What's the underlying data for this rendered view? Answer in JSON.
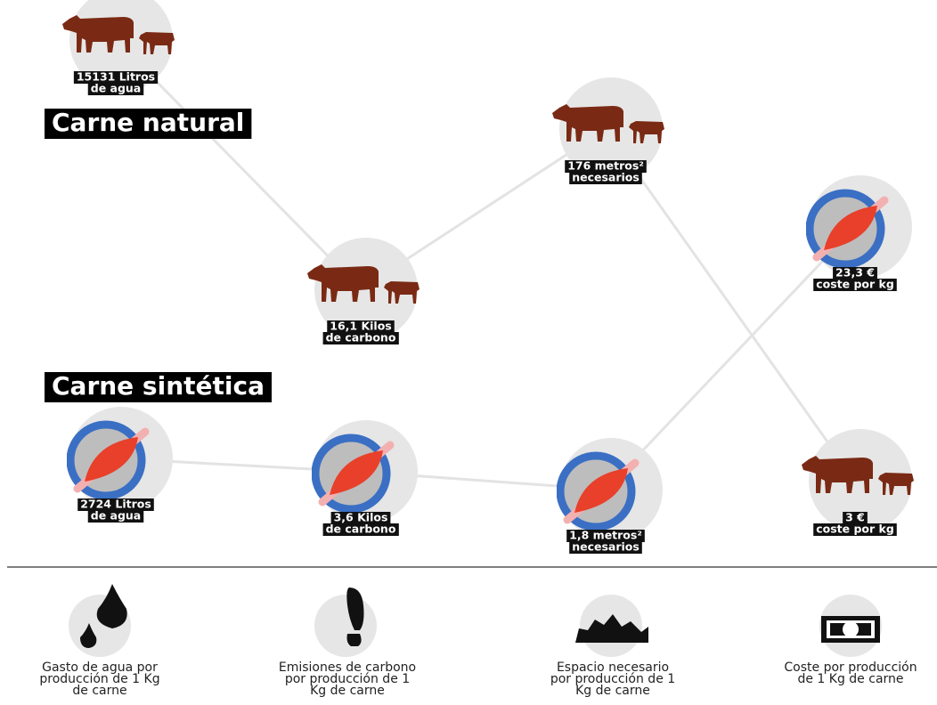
{
  "natural": {
    "title": "Carne natural",
    "nodes": [
      {
        "lines": [
          "15131 Litros",
          "de agua"
        ]
      },
      {
        "lines": [
          "16,1 Kilos",
          "de carbono"
        ]
      },
      {
        "lines": [
          "176 metros²",
          "necesarios"
        ]
      },
      {
        "lines": [
          "3 €",
          "coste por kg"
        ]
      }
    ]
  },
  "synthetic": {
    "title": "Carne sintética",
    "nodes": [
      {
        "lines": [
          "2724 Litros",
          "de agua"
        ]
      },
      {
        "lines": [
          "3,6 Kilos",
          "de carbono"
        ]
      },
      {
        "lines": [
          "1,8 metros²",
          "necesarios"
        ]
      },
      {
        "lines": [
          "23,3 €",
          "coste por kg"
        ]
      }
    ]
  },
  "legend": [
    {
      "lines": [
        "Gasto de agua por",
        "producción de 1 Kg",
        "de carne"
      ]
    },
    {
      "lines": [
        "Emisiones de carbono",
        "por producción de 1",
        "Kg de carne"
      ]
    },
    {
      "lines": [
        "Espacio necesario",
        "por producción de 1",
        "Kg de carne"
      ]
    },
    {
      "lines": [
        "Coste por producción",
        "de 1 Kg de carne"
      ]
    }
  ]
}
